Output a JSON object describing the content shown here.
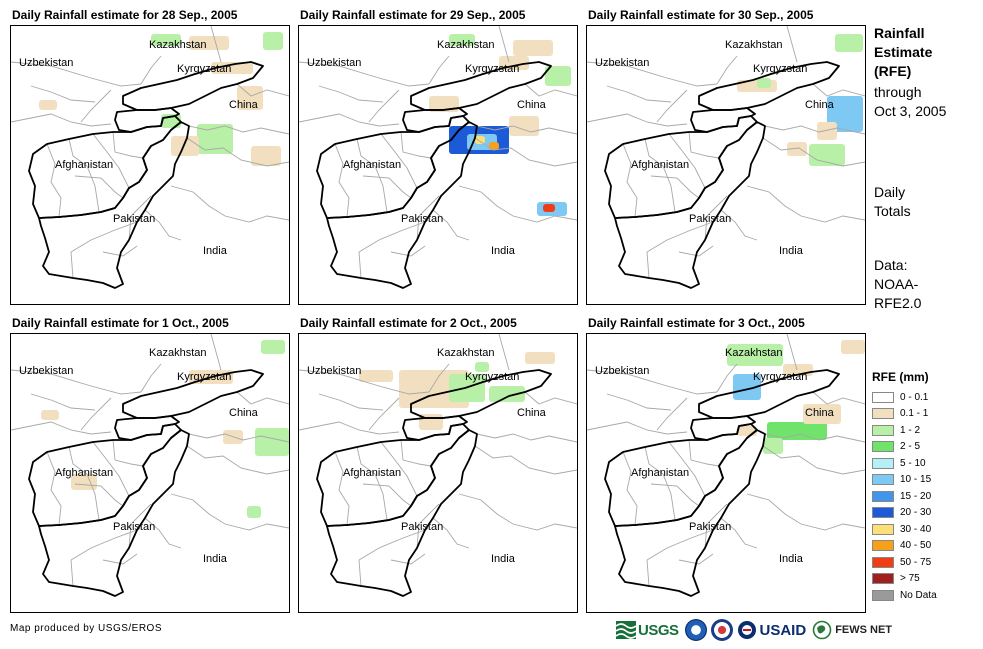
{
  "panels": [
    {
      "title": "Daily Rainfall estimate for 28 Sep., 2005"
    },
    {
      "title": "Daily Rainfall estimate for 29 Sep., 2005"
    },
    {
      "title": "Daily Rainfall estimate for 30 Sep., 2005"
    },
    {
      "title": "Daily Rainfall estimate for 1 Oct., 2005"
    },
    {
      "title": "Daily Rainfall estimate for 2 Oct., 2005"
    },
    {
      "title": "Daily Rainfall estimate for 3 Oct., 2005"
    }
  ],
  "map_labels": {
    "kazakhstan": "Kazakhstan",
    "uzbekistan": "Uzbekistan",
    "kyrgyzstan": "Kyrgyzstan",
    "china": "China",
    "afghanistan": "Afghanistan",
    "pakistan": "Pakistan",
    "india": "India"
  },
  "side": {
    "title_lines": [
      "Rainfall",
      "Estimate",
      "(RFE)"
    ],
    "through_lines": [
      "through",
      "Oct 3, 2005"
    ],
    "totals_lines": [
      "Daily",
      "Totals"
    ],
    "data_lines": [
      "Data:",
      "NOAA-",
      "RFE2.0"
    ]
  },
  "legend": {
    "title": "RFE (mm)",
    "items": [
      {
        "label": "0 - 0.1",
        "color": "#ffffff"
      },
      {
        "label": "0.1 - 1",
        "color": "#f2dfc0"
      },
      {
        "label": "1 - 2",
        "color": "#b8f0a8"
      },
      {
        "label": "2 - 5",
        "color": "#6fe36a"
      },
      {
        "label": "5 - 10",
        "color": "#b6f0f6"
      },
      {
        "label": "10 - 15",
        "color": "#7ec8f4"
      },
      {
        "label": "15 - 20",
        "color": "#4196ec"
      },
      {
        "label": "20 - 30",
        "color": "#1c5ad8"
      },
      {
        "label": "30 - 40",
        "color": "#fbe07a"
      },
      {
        "label": "40 - 50",
        "color": "#f7a01a"
      },
      {
        "label": "50 - 75",
        "color": "#ef3e16"
      },
      {
        "label": "> 75",
        "color": "#a01f1f"
      },
      {
        "label": "No Data",
        "color": "#9a9a9a"
      }
    ]
  },
  "credit": "Map produced by USGS/EROS",
  "logos": {
    "usgs": "USGS",
    "usaid": "USAID",
    "fews": "FEWS NET"
  }
}
